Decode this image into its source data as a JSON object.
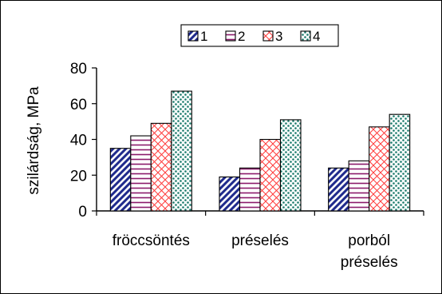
{
  "chart_data": {
    "type": "bar",
    "title": "",
    "xlabel": "",
    "ylabel": "szilárdság, MPa",
    "ylim": [
      0,
      80
    ],
    "yticks": [
      0,
      20,
      40,
      60,
      80
    ],
    "grid": false,
    "legend_position": "top",
    "categories": [
      [
        "fröccsöntés"
      ],
      [
        "préselés"
      ],
      [
        "porból",
        "préselés"
      ]
    ],
    "series": [
      {
        "name": "1",
        "values": [
          35,
          19,
          24
        ],
        "pattern": "diagonal-hatch",
        "color": "#1f2a8c"
      },
      {
        "name": "2",
        "values": [
          42,
          24,
          28
        ],
        "pattern": "horizontal-lines",
        "color": "#8b1a6b"
      },
      {
        "name": "3",
        "values": [
          49,
          40,
          47
        ],
        "pattern": "crosshatch",
        "color": "#ff3b3b"
      },
      {
        "name": "4",
        "values": [
          67,
          51,
          54
        ],
        "pattern": "dots",
        "color": "#1a7a6b"
      }
    ]
  }
}
